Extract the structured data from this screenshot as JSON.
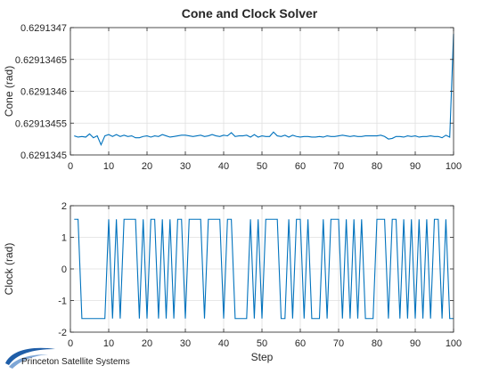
{
  "figure": {
    "title": "Cone and Clock Solver"
  },
  "branding": {
    "company": "Princeton Satellite Systems"
  },
  "colors": {
    "line": "#0072BD",
    "axis": "#262626",
    "grid": "#dfdfdf",
    "logo": "#1f5ea8"
  },
  "chart_data": [
    {
      "type": "line",
      "title": "Cone and Clock Solver",
      "xlabel": "",
      "ylabel": "Cone (rad)",
      "xlim": [
        0,
        100
      ],
      "ylim": [
        0.6291345,
        0.6291347
      ],
      "xticks": [
        0,
        10,
        20,
        30,
        40,
        50,
        60,
        70,
        80,
        90,
        100
      ],
      "xtick_labels": [
        "0",
        "10",
        "20",
        "30",
        "40",
        "50",
        "60",
        "70",
        "80",
        "90",
        "100"
      ],
      "yticks": [
        0.6291345,
        0.62913455,
        0.6291346,
        0.62913465,
        0.6291347
      ],
      "ytick_labels": [
        "0.6291345",
        "0.62913455",
        "0.6291346",
        "0.62913465",
        "0.6291347"
      ],
      "grid": true,
      "series": [
        {
          "x": [
            1,
            2,
            3,
            4,
            5,
            6,
            7,
            8,
            9,
            10,
            11,
            12,
            13,
            14,
            15,
            16,
            17,
            18,
            19,
            20,
            21,
            22,
            23,
            24,
            25,
            26,
            27,
            28,
            29,
            30,
            31,
            32,
            33,
            34,
            35,
            36,
            37,
            38,
            39,
            40,
            41,
            42,
            43,
            44,
            45,
            46,
            47,
            48,
            49,
            50,
            51,
            52,
            53,
            54,
            55,
            56,
            57,
            58,
            59,
            60,
            61,
            62,
            63,
            64,
            65,
            66,
            67,
            68,
            69,
            70,
            71,
            72,
            73,
            74,
            75,
            76,
            77,
            78,
            79,
            80,
            81,
            82,
            83,
            84,
            85,
            86,
            87,
            88,
            89,
            90,
            91,
            92,
            93,
            94,
            95,
            96,
            97,
            98,
            99,
            100
          ],
          "values": [
            0.62913453,
            0.629134528,
            0.629134529,
            0.629134528,
            0.629134533,
            0.629134527,
            0.62913453,
            0.629134516,
            0.62913453,
            0.629134532,
            0.629134529,
            0.629134532,
            0.629134529,
            0.629134531,
            0.629134529,
            0.62913453,
            0.629134527,
            0.629134527,
            0.629134529,
            0.62913453,
            0.629134528,
            0.62913453,
            0.629134529,
            0.629134532,
            0.62913453,
            0.629134528,
            0.629134529,
            0.62913453,
            0.629134531,
            0.629134531,
            0.62913453,
            0.629134529,
            0.62913453,
            0.629134531,
            0.629134529,
            0.62913453,
            0.629134532,
            0.62913453,
            0.629134529,
            0.629134531,
            0.62913453,
            0.629134535,
            0.629134529,
            0.62913453,
            0.62913453,
            0.629134531,
            0.629134528,
            0.629134532,
            0.629134528,
            0.62913453,
            0.629134529,
            0.629134529,
            0.629134536,
            0.62913453,
            0.629134529,
            0.629134531,
            0.629134528,
            0.629134531,
            0.629134529,
            0.629134528,
            0.629134529,
            0.629134529,
            0.629134528,
            0.629134528,
            0.629134529,
            0.629134528,
            0.62913453,
            0.629134529,
            0.629134529,
            0.62913453,
            0.629134531,
            0.62913453,
            0.629134529,
            0.62913453,
            0.629134529,
            0.629134529,
            0.62913453,
            0.62913453,
            0.62913453,
            0.62913453,
            0.629134531,
            0.629134529,
            0.629134525,
            0.629134526,
            0.629134529,
            0.629134529,
            0.629134528,
            0.62913453,
            0.629134529,
            0.62913453,
            0.629134528,
            0.629134529,
            0.629134529,
            0.62913453,
            0.629134529,
            0.629134529,
            0.629134527,
            0.629134531,
            0.629134528,
            0.62913469
          ]
        }
      ]
    },
    {
      "type": "line",
      "title": "",
      "xlabel": "Step",
      "ylabel": "Clock (rad)",
      "xlim": [
        0,
        100
      ],
      "ylim": [
        -2,
        2
      ],
      "xticks": [
        0,
        10,
        20,
        30,
        40,
        50,
        60,
        70,
        80,
        90,
        100
      ],
      "xtick_labels": [
        "0",
        "10",
        "20",
        "30",
        "40",
        "50",
        "60",
        "70",
        "80",
        "90",
        "100"
      ],
      "yticks": [
        -2,
        -1,
        0,
        1,
        2
      ],
      "ytick_labels": [
        "-2",
        "-1",
        "0",
        "1",
        "2"
      ],
      "grid": true,
      "series": [
        {
          "x": [
            1,
            2,
            3,
            4,
            5,
            6,
            7,
            8,
            9,
            10,
            11,
            12,
            13,
            14,
            15,
            16,
            17,
            18,
            19,
            20,
            21,
            22,
            23,
            24,
            25,
            26,
            27,
            28,
            29,
            30,
            31,
            32,
            33,
            34,
            35,
            36,
            37,
            38,
            39,
            40,
            41,
            42,
            43,
            44,
            45,
            46,
            47,
            48,
            49,
            50,
            51,
            52,
            53,
            54,
            55,
            56,
            57,
            58,
            59,
            60,
            61,
            62,
            63,
            64,
            65,
            66,
            67,
            68,
            69,
            70,
            71,
            72,
            73,
            74,
            75,
            76,
            77,
            78,
            79,
            80,
            81,
            82,
            83,
            84,
            85,
            86,
            87,
            88,
            89,
            90,
            91,
            92,
            93,
            94,
            95,
            96,
            97,
            98,
            99,
            100
          ],
          "values": [
            1.5708,
            1.5708,
            -1.5708,
            -1.5708,
            -1.5708,
            -1.5708,
            -1.5708,
            -1.5708,
            -1.5708,
            1.5708,
            -1.5708,
            1.5708,
            -1.5708,
            1.5708,
            1.5708,
            1.5708,
            1.5708,
            -1.5708,
            1.5708,
            -1.5708,
            1.5708,
            1.5708,
            -1.5708,
            1.5708,
            -1.5708,
            1.5708,
            -1.5708,
            1.5708,
            1.5708,
            -1.5708,
            1.5708,
            1.5708,
            1.5708,
            1.5708,
            -1.5708,
            1.5708,
            1.5708,
            1.5708,
            1.5708,
            -1.5708,
            1.5708,
            1.5708,
            -1.5708,
            -1.5708,
            -1.5708,
            -1.5708,
            1.5708,
            -1.5708,
            1.5708,
            -1.5708,
            1.5708,
            1.5708,
            1.5708,
            1.5708,
            -1.5708,
            -1.5708,
            1.5708,
            -1.5708,
            1.5708,
            1.5708,
            -1.5708,
            1.5708,
            -1.5708,
            -1.5708,
            -1.5708,
            1.5708,
            -1.5708,
            1.5708,
            1.5708,
            1.5708,
            -1.5708,
            1.5708,
            -1.5708,
            1.5708,
            -1.5708,
            1.5708,
            -1.5708,
            -1.5708,
            -1.5708,
            1.5708,
            1.5708,
            1.5708,
            -1.5708,
            1.5708,
            1.5708,
            -1.5708,
            1.5708,
            -1.5708,
            1.5708,
            -1.5708,
            1.5708,
            -1.5708,
            1.5708,
            -1.5708,
            1.5708,
            1.5708,
            -1.5708,
            1.5708,
            -1.5708,
            -1.5708
          ]
        }
      ]
    }
  ]
}
